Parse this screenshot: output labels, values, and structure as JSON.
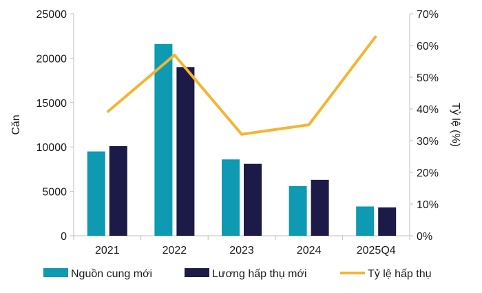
{
  "chart_data": {
    "type": "bar",
    "categories": [
      "2021",
      "2022",
      "2023",
      "2024",
      "2025Q4"
    ],
    "ylabel": "Căn",
    "y2label": "Tỷ lệ (%)",
    "ylim": [
      0,
      25000
    ],
    "y_ticks": [
      "0",
      "5000",
      "10000",
      "15000",
      "20000",
      "25000"
    ],
    "y2lim": [
      0,
      70
    ],
    "y2_ticks": [
      "0%",
      "10%",
      "20%",
      "30%",
      "40%",
      "50%",
      "60%",
      "70%"
    ],
    "grid": false,
    "legend_position": "bottom",
    "series": [
      {
        "name": "Nguồn cung mới",
        "kind": "bar",
        "axis": "left",
        "color": "#0d9ab2",
        "values": [
          9500,
          21600,
          8600,
          5600,
          3300
        ]
      },
      {
        "name": "Lương hấp thụ mới",
        "kind": "bar",
        "axis": "left",
        "color": "#1c1a47",
        "values": [
          10100,
          19000,
          8100,
          6300,
          3200
        ]
      },
      {
        "name": "Tỷ lệ hấp thụ",
        "kind": "line",
        "axis": "right",
        "color": "#f4b532",
        "values": [
          39,
          57,
          32,
          35,
          63
        ]
      }
    ]
  }
}
